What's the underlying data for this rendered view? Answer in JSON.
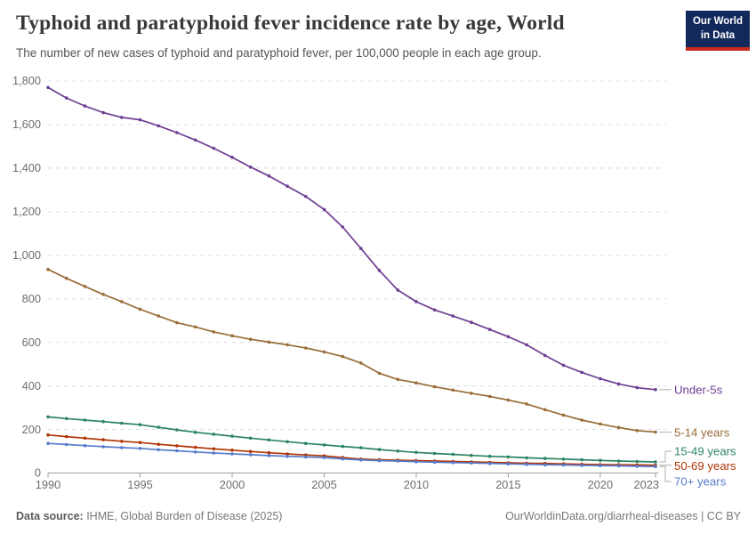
{
  "header": {
    "title": "Typhoid and paratyphoid fever incidence rate by age, World",
    "subtitle": "The number of new cases of typhoid and paratyphoid fever, per 100,000 people in each age group.",
    "logo": {
      "line1": "Our World",
      "line2": "in Data"
    }
  },
  "footer": {
    "source_label": "Data source:",
    "source_text": " IHME, Global Burden of Disease (2025)",
    "credit": "OurWorldinData.org/diarrheal-diseases | CC BY"
  },
  "colors": {
    "under5": "#6d3e91",
    "age5_14": "#996d39",
    "age15_49": "#2c8465",
    "age50_69": "#b13507",
    "age70plus": "#577ccb",
    "gridline": "#dcdcdc",
    "axis": "#9e9e9e",
    "tick_label": "#6e6e6e",
    "legend_connector": "#bdbdbd"
  },
  "chart_data": {
    "type": "line",
    "title": "Typhoid and paratyphoid fever incidence rate by age, World",
    "xlabel": "",
    "ylabel": "",
    "ylim": [
      0,
      1800
    ],
    "yticks": [
      0,
      200,
      400,
      600,
      800,
      1000,
      1200,
      1400,
      1600,
      1800
    ],
    "xticks": [
      1990,
      1995,
      2000,
      2005,
      2010,
      2015,
      2020,
      2023
    ],
    "grid": "dashed-horizontal",
    "legend_position": "right-of-line-ends",
    "x": [
      1990,
      1991,
      1992,
      1993,
      1994,
      1995,
      1996,
      1997,
      1998,
      1999,
      2000,
      2001,
      2002,
      2003,
      2004,
      2005,
      2006,
      2007,
      2008,
      2009,
      2010,
      2011,
      2012,
      2013,
      2014,
      2015,
      2016,
      2017,
      2018,
      2019,
      2020,
      2021,
      2022,
      2023
    ],
    "series": [
      {
        "name": "Under-5s",
        "color": "#6d3e91",
        "values": [
          1770,
          1722,
          1685,
          1655,
          1633,
          1622,
          1594,
          1563,
          1529,
          1491,
          1450,
          1405,
          1364,
          1317,
          1270,
          1210,
          1130,
          1031,
          930,
          840,
          787,
          749,
          721,
          692,
          659,
          626,
          589,
          540,
          495,
          462,
          433,
          409,
          392,
          383
        ]
      },
      {
        "name": "5-14 years",
        "color": "#996d39",
        "values": [
          935,
          894,
          857,
          820,
          787,
          752,
          721,
          690,
          671,
          648,
          630,
          614,
          601,
          589,
          574,
          556,
          535,
          505,
          458,
          430,
          414,
          396,
          381,
          366,
          352,
          335,
          317,
          291,
          266,
          243,
          225,
          209,
          195,
          188
        ]
      },
      {
        "name": "15-49 years",
        "color": "#2c8465",
        "values": [
          258,
          250,
          243,
          236,
          229,
          222,
          210,
          198,
          187,
          178,
          169,
          160,
          152,
          144,
          136,
          129,
          122,
          116,
          108,
          101,
          95,
          90,
          86,
          81,
          77,
          74,
          70,
          67,
          64,
          61,
          58,
          55,
          53,
          51
        ]
      },
      {
        "name": "50-69 years",
        "color": "#b13507",
        "values": [
          175,
          167,
          160,
          153,
          146,
          140,
          132,
          125,
          118,
          111,
          105,
          99,
          93,
          88,
          83,
          79,
          71,
          64,
          61,
          59,
          57,
          55,
          53,
          51,
          49,
          47,
          45,
          44,
          42,
          40,
          39,
          38,
          37,
          36
        ]
      },
      {
        "name": "70+ years",
        "color": "#577ccb",
        "values": [
          136,
          131,
          126,
          121,
          117,
          113,
          107,
          102,
          97,
          92,
          88,
          84,
          80,
          77,
          74,
          71,
          65,
          60,
          57,
          55,
          52,
          50,
          48,
          46,
          44,
          42,
          40,
          38,
          37,
          35,
          34,
          33,
          31,
          30
        ]
      }
    ]
  }
}
